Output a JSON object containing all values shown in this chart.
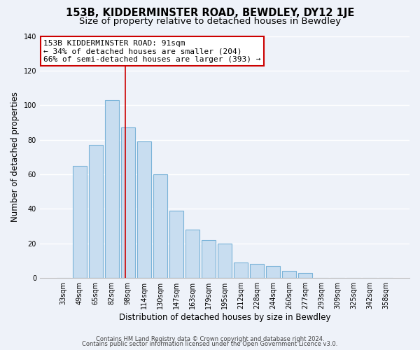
{
  "title": "153B, KIDDERMINSTER ROAD, BEWDLEY, DY12 1JE",
  "subtitle": "Size of property relative to detached houses in Bewdley",
  "xlabel": "Distribution of detached houses by size in Bewdley",
  "ylabel": "Number of detached properties",
  "bar_labels": [
    "33sqm",
    "49sqm",
    "65sqm",
    "82sqm",
    "98sqm",
    "114sqm",
    "130sqm",
    "147sqm",
    "163sqm",
    "179sqm",
    "195sqm",
    "212sqm",
    "228sqm",
    "244sqm",
    "260sqm",
    "277sqm",
    "293sqm",
    "309sqm",
    "325sqm",
    "342sqm",
    "358sqm"
  ],
  "bar_values": [
    0,
    65,
    77,
    103,
    87,
    79,
    60,
    39,
    28,
    22,
    20,
    9,
    8,
    7,
    4,
    3,
    0,
    0,
    0,
    0,
    0
  ],
  "bar_color": "#c8ddf0",
  "bar_edge_color": "#7ab3d8",
  "annotation_text_line1": "153B KIDDERMINSTER ROAD: 91sqm",
  "annotation_text_line2": "← 34% of detached houses are smaller (204)",
  "annotation_text_line3": "66% of semi-detached houses are larger (393) →",
  "annotation_box_color": "#ffffff",
  "annotation_box_edge_color": "#cc0000",
  "red_line_x": 3.85,
  "ylim": [
    0,
    140
  ],
  "yticks": [
    0,
    20,
    40,
    60,
    80,
    100,
    120,
    140
  ],
  "footer_line1": "Contains HM Land Registry data © Crown copyright and database right 2024.",
  "footer_line2": "Contains public sector information licensed under the Open Government Licence v3.0.",
  "bg_color": "#eef2f9",
  "plot_bg_color": "#eef2f9",
  "grid_color": "#ffffff",
  "title_fontsize": 10.5,
  "subtitle_fontsize": 9.5,
  "axis_label_fontsize": 8.5,
  "tick_fontsize": 7,
  "annotation_fontsize": 8,
  "footer_fontsize": 6
}
